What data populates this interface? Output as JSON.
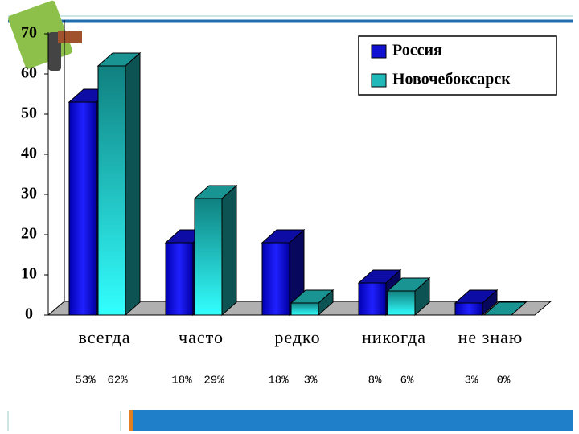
{
  "chart_data": {
    "type": "bar3d",
    "categories": [
      "всегда",
      "часто",
      "редко",
      "никогда",
      "не знаю"
    ],
    "series": [
      {
        "name": "Россия",
        "color": "#1010d0",
        "values": [
          53,
          18,
          18,
          8,
          3
        ],
        "value_labels": [
          "53%",
          "18%",
          "18%",
          "8%",
          "3%"
        ]
      },
      {
        "name": "Новочебоксарск",
        "color": "#20b8b8",
        "values": [
          62,
          29,
          3,
          6,
          0
        ],
        "value_labels": [
          "62%",
          "29%",
          "3%",
          "6%",
          "0%"
        ]
      }
    ],
    "ylim": [
      0,
      70
    ],
    "yticks": [
      0,
      10,
      20,
      30,
      40,
      50,
      60,
      70
    ],
    "legend": "top-right"
  }
}
